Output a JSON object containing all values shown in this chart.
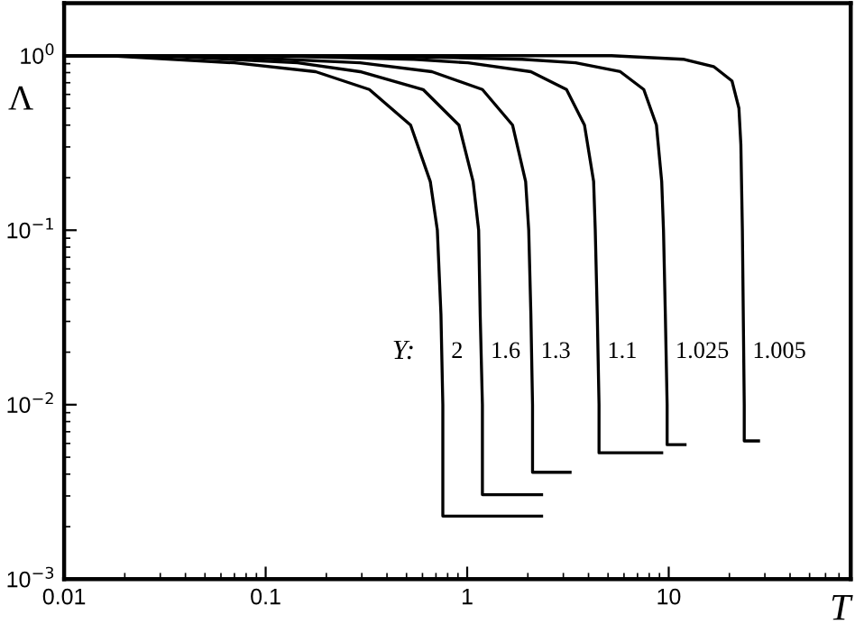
{
  "chart_data": {
    "type": "line",
    "xlabel": "T",
    "ylabel": "Λ",
    "log": "xy",
    "xlim": [
      0.01,
      80
    ],
    "ylim": [
      0.001,
      2
    ],
    "xticks": [
      {
        "value": 0.01,
        "label": "0.01"
      },
      {
        "value": 0.1,
        "label": "0.1"
      },
      {
        "value": 1,
        "label": "1"
      },
      {
        "value": 10,
        "label": "10"
      }
    ],
    "yticks": [
      {
        "value": 0.001,
        "label": "10$^{−3}$"
      },
      {
        "value": 0.01,
        "label": "10$^{−2}$"
      },
      {
        "value": 0.1,
        "label": "10$^{−1}$"
      },
      {
        "value": 1,
        "label": "10$^{0}$"
      }
    ],
    "grid": false,
    "legend": false,
    "marker": "none",
    "line_style": "solid",
    "annotations": [
      "Y:"
    ],
    "series": [
      {
        "name": "2",
        "color": "#000000",
        "x": [
          0.01,
          0.0167,
          0.07,
          0.177,
          0.327,
          0.524,
          0.656,
          0.711,
          0.741,
          0.757,
          0.757,
          2.34
        ],
        "values": [
          1,
          1,
          0.91,
          0.81,
          0.64,
          0.4,
          0.19,
          0.1,
          0.033,
          0.01,
          0.0023,
          0.0023
        ]
      },
      {
        "name": "1.6",
        "color": "#000000",
        "x": [
          0.01,
          0.03,
          0.144,
          0.294,
          0.604,
          0.91,
          1.07,
          1.14,
          1.16,
          1.19,
          1.19,
          2.34
        ],
        "values": [
          1,
          1,
          0.91,
          0.81,
          0.64,
          0.4,
          0.19,
          0.1,
          0.033,
          0.01,
          0.00305,
          0.00305
        ]
      },
      {
        "name": "1.3",
        "color": "#000000",
        "x": [
          0.01,
          0.05,
          0.294,
          0.668,
          1.19,
          1.68,
          1.95,
          2.02,
          2.07,
          2.11,
          2.11,
          3.24
        ],
        "values": [
          1,
          1,
          0.91,
          0.81,
          0.64,
          0.4,
          0.19,
          0.1,
          0.033,
          0.01,
          0.0041,
          0.0041
        ]
      },
      {
        "name": "1.1",
        "color": "#000000",
        "x": [
          0.01,
          0.1,
          0.544,
          1.01,
          2.07,
          3.11,
          3.82,
          4.24,
          4.32,
          4.42,
          4.51,
          4.51,
          9.23
        ],
        "values": [
          1,
          1,
          0.954,
          0.91,
          0.81,
          0.64,
          0.4,
          0.19,
          0.1,
          0.033,
          0.01,
          0.0053,
          0.0053
        ]
      },
      {
        "name": "1.025",
        "color": "#000000",
        "x": [
          0.01,
          0.3,
          1.87,
          3.45,
          5.75,
          7.52,
          8.69,
          9.23,
          9.42,
          9.62,
          9.82,
          9.82,
          12.05
        ],
        "values": [
          1,
          1,
          0.954,
          0.91,
          0.81,
          0.64,
          0.4,
          0.19,
          0.1,
          0.033,
          0.01,
          0.0059,
          0.0059
        ]
      },
      {
        "name": "1.005",
        "color": "#000000",
        "x": [
          0.01,
          5.2,
          11.8,
          16.7,
          20.6,
          22.3,
          22.8,
          23.2,
          23.7,
          23.7,
          27.9
        ],
        "values": [
          1,
          1,
          0.954,
          0.867,
          0.717,
          0.5,
          0.31,
          0.1,
          0.01,
          0.0062,
          0.0062
        ]
      }
    ]
  }
}
